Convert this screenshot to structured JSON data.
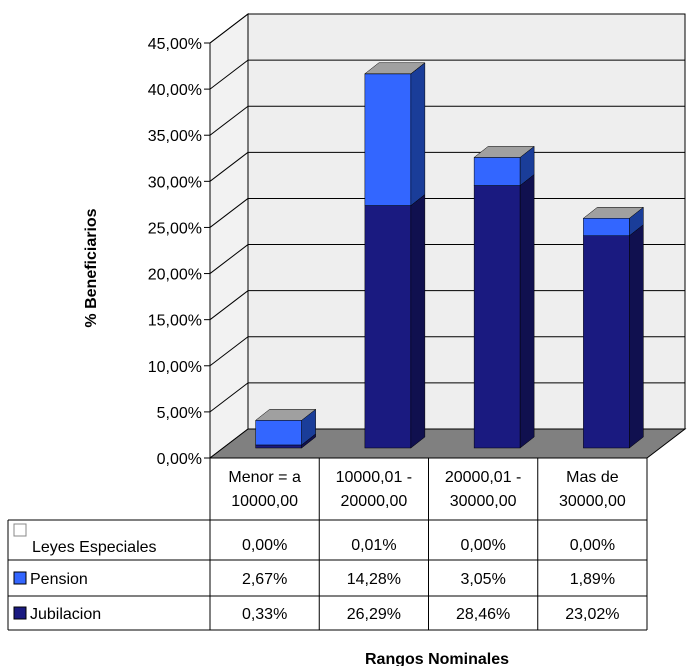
{
  "chart_data": {
    "type": "bar",
    "stacked": true,
    "three_d": true,
    "ylabel": "% Beneficiarios",
    "xlabel": "Rangos Nominales",
    "ylim": [
      0,
      45
    ],
    "y_ticks": [
      "0,00%",
      "5,00%",
      "10,00%",
      "15,00%",
      "20,00%",
      "25,00%",
      "30,00%",
      "35,00%",
      "40,00%",
      "45,00%"
    ],
    "categories": [
      [
        "Menor = a",
        "10000,00"
      ],
      [
        "10000,01 -",
        "20000,00"
      ],
      [
        "20000,01 -",
        "30000,00"
      ],
      [
        "Mas de",
        "30000,00"
      ]
    ],
    "series": [
      {
        "name": "Leyes Especiales",
        "values": [
          0.0,
          0.01,
          0.0,
          0.0
        ],
        "labels": [
          "0,00%",
          "0,01%",
          "0,00%",
          "0,00%"
        ],
        "color": "#ffffff"
      },
      {
        "name": "Pension",
        "values": [
          2.67,
          14.28,
          3.05,
          1.89
        ],
        "labels": [
          "2,67%",
          "14,28%",
          "3,05%",
          "1,89%"
        ],
        "color": "#3366ff"
      },
      {
        "name": "Jubilacion",
        "values": [
          0.33,
          26.29,
          28.46,
          23.02
        ],
        "labels": [
          "0,33%",
          "26,29%",
          "28,46%",
          "23,02%"
        ],
        "color": "#1a1a80"
      }
    ],
    "stack_order": [
      "Jubilacion",
      "Pension",
      "Leyes Especiales"
    ],
    "legend": "data-table",
    "grid": true
  }
}
